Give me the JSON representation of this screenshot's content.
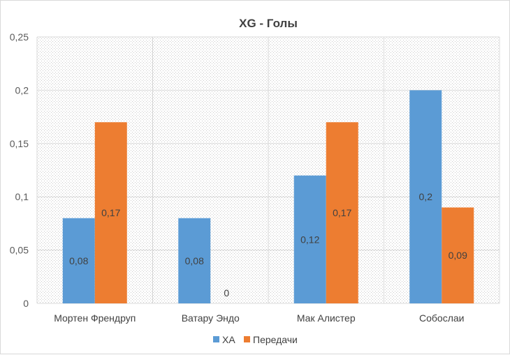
{
  "chart_data": {
    "type": "bar",
    "title": "XG - Голы",
    "xlabel": "",
    "ylabel": "",
    "ylim": [
      0,
      0.25
    ],
    "yticks": [
      0,
      0.05,
      0.1,
      0.15,
      0.2,
      0.25
    ],
    "ytick_labels": [
      "0",
      "0,05",
      "0,1",
      "0,15",
      "0,2",
      "0,25"
    ],
    "grid": true,
    "legend_position": "bottom",
    "categories": [
      "Мортен Френдруп",
      "Ватару Эндо",
      "Мак Алистер",
      "Собослаи"
    ],
    "series": [
      {
        "name": "ХА",
        "color": "#5b9bd5",
        "values": [
          0.08,
          0.08,
          0.12,
          0.2
        ],
        "labels": [
          "0,08",
          "0,08",
          "0,12",
          "0,2"
        ]
      },
      {
        "name": "Передачи",
        "color": "#ed7d31",
        "values": [
          0.17,
          0,
          0.17,
          0.09
        ],
        "labels": [
          "0,17",
          "0",
          "0,17",
          "0,09"
        ]
      }
    ]
  }
}
